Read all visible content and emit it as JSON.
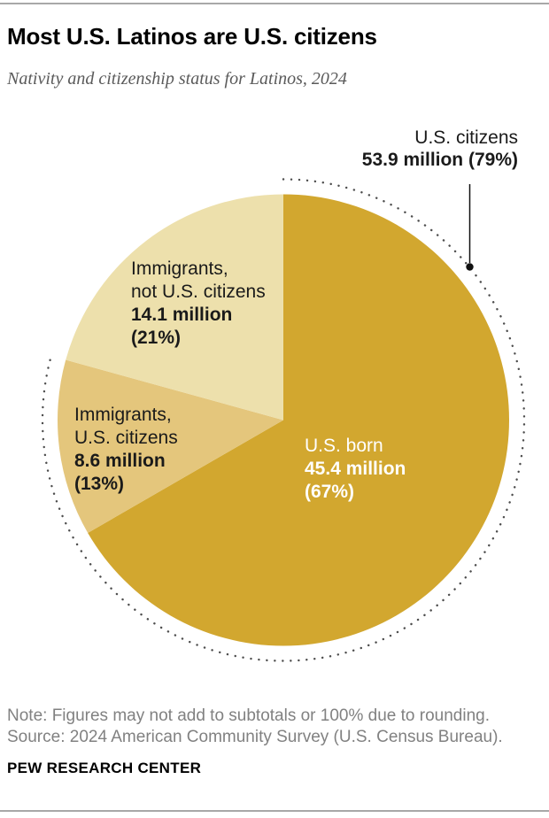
{
  "header": {
    "title": "Most U.S. Latinos are U.S. citizens",
    "subtitle": "Nativity and citizenship status for Latinos, 2024"
  },
  "chart_data": {
    "type": "pie",
    "title": "Most U.S. Latinos are U.S. citizens",
    "start_angle_deg": 0,
    "direction": "clockwise",
    "slices": [
      {
        "id": "us-born",
        "label": "U.S. born",
        "label_lines": [
          "U.S. born"
        ],
        "value": 45.4,
        "value_label": "45.4 million",
        "pct": 67,
        "pct_label": "(67%)",
        "color": "#D2A72F",
        "text_color": "#ffffff"
      },
      {
        "id": "immigrants-us-citizens",
        "label": "Immigrants, U.S. citizens",
        "label_lines": [
          "Immigrants,",
          "U.S. citizens"
        ],
        "value": 8.6,
        "value_label": "8.6 million",
        "pct": 13,
        "pct_label": "(13%)",
        "color": "#E4C67C",
        "text_color": "#1a1a1a"
      },
      {
        "id": "immigrants-not-citizens",
        "label": "Immigrants, not U.S. citizens",
        "label_lines": [
          "Immigrants,",
          "not U.S. citizens"
        ],
        "value": 14.1,
        "value_label": "14.1 million",
        "pct": 21,
        "pct_label": "(21%)",
        "color": "#EDE0AC",
        "text_color": "#1a1a1a"
      }
    ],
    "annotation": {
      "label": "U.S. citizens",
      "value_label": "53.9 million (79%)",
      "covers_slice_indices": [
        0,
        1
      ],
      "arc_style": "dotted",
      "arc_color": "#4d4d4d",
      "callout_color": "#111111"
    }
  },
  "footer": {
    "note": "Note: Figures may not add to subtotals or 100% due to rounding.",
    "source": "Source: 2024 American Community Survey (U.S. Census Bureau).",
    "brand": "PEW RESEARCH CENTER"
  }
}
